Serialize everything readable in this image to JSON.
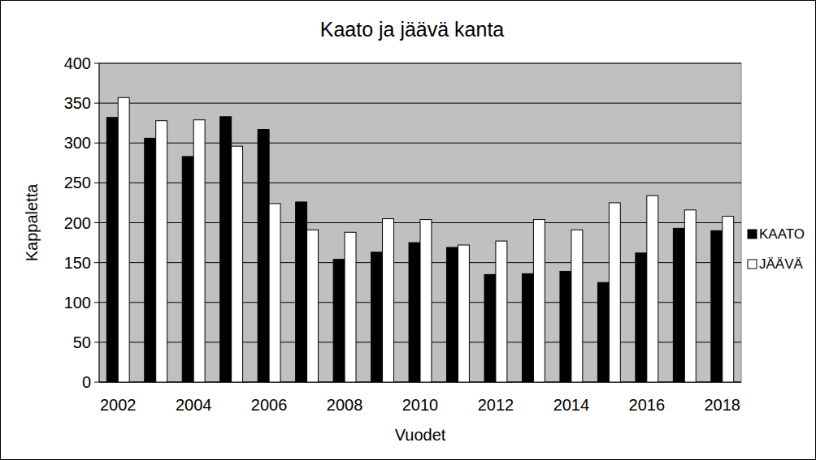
{
  "chart_data": {
    "type": "bar",
    "title": "Kaato ja jäävä kanta",
    "x_label": "Vuodet",
    "y_label": "Kappaletta",
    "categories": [
      "2002",
      null,
      "2004",
      null,
      "2006",
      null,
      "2008",
      null,
      "2010",
      null,
      "2012",
      null,
      "2014",
      null,
      "2016",
      null,
      "2018"
    ],
    "series": [
      {
        "name": "KAATO",
        "color": "#000000",
        "values": [
          332,
          306,
          283,
          333,
          317,
          226,
          154,
          163,
          175,
          169,
          135,
          136,
          139,
          125,
          162,
          193,
          190
        ]
      },
      {
        "name": "JÄÄVÄ",
        "color": "#ffffff",
        "values": [
          357,
          328,
          329,
          296,
          224,
          191,
          188,
          205,
          204,
          172,
          177,
          204,
          191,
          225,
          234,
          216,
          208
        ]
      }
    ],
    "ylim": [
      0,
      400
    ],
    "yticks": [
      0,
      50,
      100,
      150,
      200,
      250,
      300,
      350,
      400
    ],
    "grid": true,
    "legend": "right"
  }
}
